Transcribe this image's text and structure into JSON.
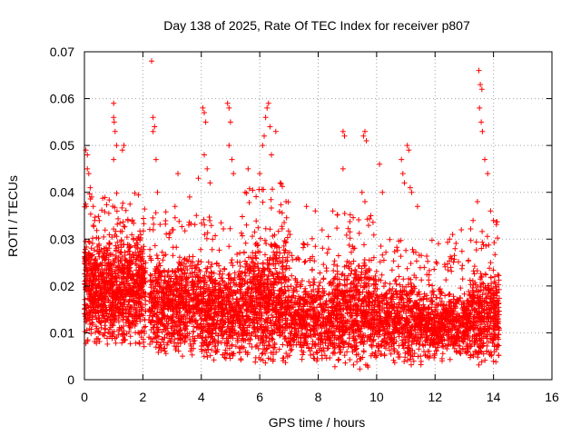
{
  "chart_data": {
    "type": "scatter",
    "title": "Day 138 of 2025, Rate Of TEC Index for receiver p807",
    "xlabel": "GPS time / hours",
    "ylabel": "ROTI / TECUs",
    "xlim": [
      0,
      16
    ],
    "ylim": [
      0,
      0.07
    ],
    "grid": true,
    "marker": "+",
    "color": "#ff0000",
    "x_ticks": [
      "0",
      "2",
      "4",
      "6",
      "8",
      "10",
      "12",
      "14",
      "16"
    ],
    "y_ticks": [
      "0",
      "0.01",
      "0.02",
      "0.03",
      "0.04",
      "0.05",
      "0.06",
      "0.07"
    ],
    "series": [
      {
        "name": "ROTI",
        "points": [
          [
            0.05,
            0.049
          ],
          [
            0.1,
            0.048
          ],
          [
            0.1,
            0.045
          ],
          [
            0.15,
            0.044
          ],
          [
            0.2,
            0.041
          ],
          [
            0.25,
            0.039
          ],
          [
            0.3,
            0.037
          ],
          [
            0.35,
            0.034
          ],
          [
            1.0,
            0.059
          ],
          [
            1.0,
            0.056
          ],
          [
            1.02,
            0.055
          ],
          [
            1.05,
            0.053
          ],
          [
            1.0,
            0.047
          ],
          [
            1.1,
            0.05
          ],
          [
            1.3,
            0.049
          ],
          [
            1.35,
            0.05
          ],
          [
            2.3,
            0.068
          ],
          [
            2.35,
            0.056
          ],
          [
            2.4,
            0.054
          ],
          [
            2.35,
            0.053
          ],
          [
            2.45,
            0.047
          ],
          [
            2.5,
            0.04
          ],
          [
            3.2,
            0.044
          ],
          [
            3.1,
            0.037
          ],
          [
            3.6,
            0.039
          ],
          [
            3.9,
            0.043
          ],
          [
            4.05,
            0.058
          ],
          [
            4.1,
            0.057
          ],
          [
            4.15,
            0.055
          ],
          [
            4.1,
            0.048
          ],
          [
            4.2,
            0.045
          ],
          [
            4.3,
            0.042
          ],
          [
            4.9,
            0.059
          ],
          [
            4.95,
            0.058
          ],
          [
            5.0,
            0.055
          ],
          [
            4.95,
            0.05
          ],
          [
            5.05,
            0.047
          ],
          [
            5.1,
            0.044
          ],
          [
            5.6,
            0.045
          ],
          [
            5.5,
            0.04
          ],
          [
            6.1,
            0.05
          ],
          [
            6.15,
            0.052
          ],
          [
            6.2,
            0.056
          ],
          [
            6.25,
            0.058
          ],
          [
            6.3,
            0.059
          ],
          [
            6.35,
            0.054
          ],
          [
            6.4,
            0.048
          ],
          [
            6.55,
            0.053
          ],
          [
            6.0,
            0.044
          ],
          [
            6.7,
            0.042
          ],
          [
            6.9,
            0.038
          ],
          [
            7.6,
            0.037
          ],
          [
            7.9,
            0.036
          ],
          [
            8.5,
            0.036
          ],
          [
            8.85,
            0.053
          ],
          [
            8.9,
            0.052
          ],
          [
            8.85,
            0.045
          ],
          [
            9.55,
            0.052
          ],
          [
            9.6,
            0.053
          ],
          [
            9.65,
            0.051
          ],
          [
            9.5,
            0.04
          ],
          [
            9.6,
            0.038
          ],
          [
            10.1,
            0.046
          ],
          [
            10.2,
            0.04
          ],
          [
            10.85,
            0.047
          ],
          [
            10.9,
            0.044
          ],
          [
            10.95,
            0.042
          ],
          [
            11.05,
            0.05
          ],
          [
            11.1,
            0.049
          ],
          [
            11.15,
            0.041
          ],
          [
            11.2,
            0.04
          ],
          [
            11.4,
            0.037
          ],
          [
            12.5,
            0.03
          ],
          [
            12.6,
            0.031
          ],
          [
            12.9,
            0.032
          ],
          [
            13.3,
            0.034
          ],
          [
            13.45,
            0.038
          ],
          [
            13.5,
            0.066
          ],
          [
            13.55,
            0.063
          ],
          [
            13.6,
            0.062
          ],
          [
            13.52,
            0.058
          ],
          [
            13.58,
            0.055
          ],
          [
            13.62,
            0.053
          ],
          [
            13.7,
            0.047
          ],
          [
            13.8,
            0.044
          ],
          [
            13.9,
            0.036
          ],
          [
            14.0,
            0.034
          ]
        ]
      }
    ],
    "density_bands": [
      {
        "x_start": 0.0,
        "x_end": 2.1,
        "y_low": 0.007,
        "y_high": 0.032,
        "top_extent": 0.04,
        "density": 9
      },
      {
        "x_start": 2.2,
        "x_end": 4.0,
        "y_low": 0.005,
        "y_high": 0.027,
        "top_extent": 0.036,
        "density": 7
      },
      {
        "x_start": 4.0,
        "x_end": 5.5,
        "y_low": 0.004,
        "y_high": 0.025,
        "top_extent": 0.035,
        "density": 7
      },
      {
        "x_start": 5.5,
        "x_end": 7.0,
        "y_low": 0.003,
        "y_high": 0.03,
        "top_extent": 0.042,
        "density": 8
      },
      {
        "x_start": 7.0,
        "x_end": 8.5,
        "y_low": 0.004,
        "y_high": 0.022,
        "top_extent": 0.032,
        "density": 6
      },
      {
        "x_start": 8.5,
        "x_end": 10.0,
        "y_low": 0.002,
        "y_high": 0.026,
        "top_extent": 0.036,
        "density": 7
      },
      {
        "x_start": 10.0,
        "x_end": 11.6,
        "y_low": 0.003,
        "y_high": 0.022,
        "top_extent": 0.03,
        "density": 6
      },
      {
        "x_start": 11.6,
        "x_end": 13.2,
        "y_low": 0.004,
        "y_high": 0.02,
        "top_extent": 0.03,
        "density": 6
      },
      {
        "x_start": 13.2,
        "x_end": 14.2,
        "y_low": 0.003,
        "y_high": 0.024,
        "top_extent": 0.034,
        "density": 7
      }
    ]
  }
}
